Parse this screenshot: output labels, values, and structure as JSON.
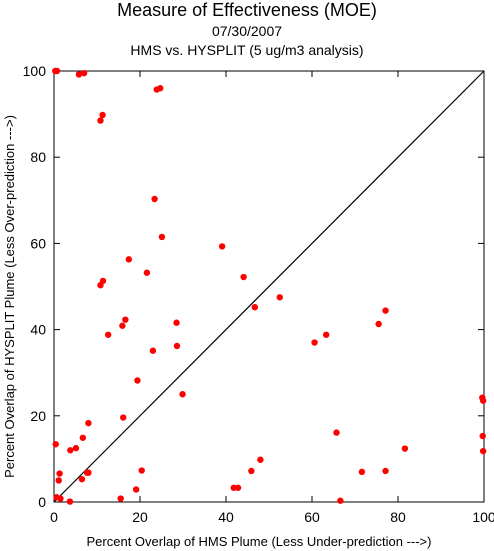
{
  "chart_data": {
    "type": "scatter",
    "title": "Measure of Effectiveness (MOE)",
    "subtitle": "07/30/2007",
    "subtitle2": "HMS vs. HYSPLIT  (5 ug/m3 analysis)",
    "xlabel": "Percent Overlap of HMS Plume (Less Under-prediction --->)",
    "ylabel": "Percent Overlap of HYSPLIT Plume (Less Over-prediction --->)",
    "xlim": [
      0,
      100
    ],
    "ylim": [
      0,
      100
    ],
    "xticks": [
      0,
      20,
      40,
      60,
      80,
      100
    ],
    "yticks": [
      0,
      20,
      40,
      60,
      80,
      100
    ],
    "reference_line": "y = x",
    "point_color": "#ff0000",
    "points": [
      [
        0.3,
        100
      ],
      [
        0.7,
        100
      ],
      [
        5.8,
        99.2
      ],
      [
        7.0,
        99.5
      ],
      [
        10.8,
        88.5
      ],
      [
        11.3,
        89.8
      ],
      [
        23.9,
        95.7
      ],
      [
        24.7,
        96.0
      ],
      [
        23.4,
        70.3
      ],
      [
        25.1,
        61.5
      ],
      [
        39.1,
        59.3
      ],
      [
        17.4,
        56.3
      ],
      [
        21.6,
        53.2
      ],
      [
        44.1,
        52.2
      ],
      [
        11.4,
        51.3
      ],
      [
        10.8,
        50.3
      ],
      [
        52.5,
        47.5
      ],
      [
        46.7,
        45.2
      ],
      [
        77.1,
        44.4
      ],
      [
        75.5,
        41.3
      ],
      [
        16.6,
        42.3
      ],
      [
        15.9,
        40.9
      ],
      [
        28.5,
        41.6
      ],
      [
        12.6,
        38.8
      ],
      [
        63.3,
        38.8
      ],
      [
        60.6,
        37.0
      ],
      [
        23.0,
        35.1
      ],
      [
        28.6,
        36.2
      ],
      [
        19.4,
        28.2
      ],
      [
        29.9,
        25.0
      ],
      [
        99.6,
        24.2
      ],
      [
        99.8,
        23.5
      ],
      [
        16.1,
        19.6
      ],
      [
        8.0,
        18.3
      ],
      [
        99.7,
        15.3
      ],
      [
        99.8,
        11.8
      ],
      [
        0.4,
        13.4
      ],
      [
        6.7,
        14.9
      ],
      [
        3.8,
        12.0
      ],
      [
        5.1,
        12.5
      ],
      [
        65.7,
        16.1
      ],
      [
        81.6,
        12.4
      ],
      [
        1.3,
        6.6
      ],
      [
        1.1,
        5.0
      ],
      [
        6.5,
        5.3
      ],
      [
        8.0,
        6.8
      ],
      [
        7.7,
        6.8
      ],
      [
        20.4,
        7.3
      ],
      [
        48.0,
        9.8
      ],
      [
        45.9,
        7.2
      ],
      [
        71.6,
        7.0
      ],
      [
        77.1,
        7.2
      ],
      [
        41.8,
        3.3
      ],
      [
        42.8,
        3.3
      ],
      [
        19.1,
        2.9
      ],
      [
        15.5,
        0.8
      ],
      [
        66.6,
        0.3
      ],
      [
        0.6,
        1.1
      ],
      [
        1.5,
        0.8
      ],
      [
        3.7,
        0.1
      ]
    ]
  }
}
